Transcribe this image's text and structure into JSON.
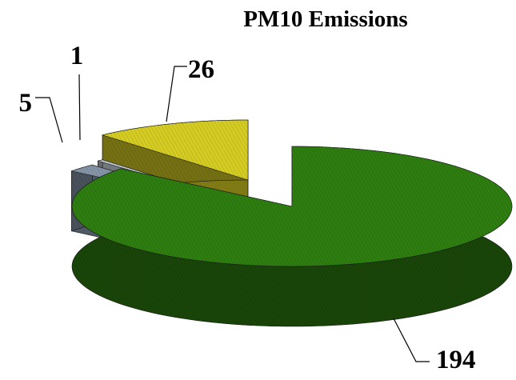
{
  "chart_data": {
    "type": "pie",
    "title": "PM10 Emissions",
    "three_d": true,
    "exploded": true,
    "slices": [
      {
        "value": 194,
        "label": "194",
        "color": "#2e7d10"
      },
      {
        "value": 5,
        "label": "5",
        "color": "#8494a6"
      },
      {
        "value": 1,
        "label": "1",
        "color": "#c0c8d0"
      },
      {
        "value": 26,
        "label": "26",
        "color": "#d4cc22"
      }
    ],
    "legend": "none",
    "data_labels": "outside-with-leader-lines"
  }
}
